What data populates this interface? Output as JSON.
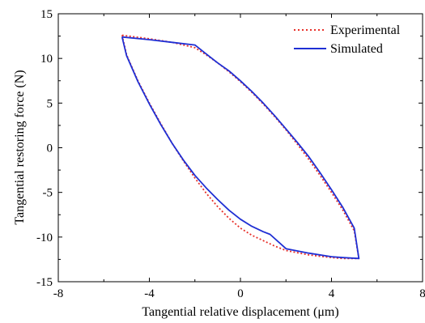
{
  "chart_data": {
    "type": "line",
    "title": "",
    "xlabel": "Tangential relative displacement (μm)",
    "ylabel": "Tangential restoring force (N)",
    "xlim": [
      -8,
      8
    ],
    "ylim": [
      -15,
      15
    ],
    "x_ticks": [
      -8,
      -4,
      0,
      4,
      8
    ],
    "y_ticks": [
      -15,
      -10,
      -5,
      0,
      5,
      10,
      15
    ],
    "grid": false,
    "legend_position": "top-right",
    "series": [
      {
        "name": "Experimental",
        "color": "#e8302a",
        "line_style": "dotted",
        "x": [
          -5.2,
          -4.0,
          -3.0,
          -2.0,
          -1.5,
          -1.0,
          -0.5,
          0.0,
          0.5,
          1.0,
          1.5,
          2.0,
          2.5,
          3.0,
          3.5,
          4.0,
          4.5,
          5.0,
          5.2,
          4.5,
          4.0,
          3.0,
          2.0,
          1.5,
          1.0,
          0.5,
          0.0,
          -0.5,
          -1.0,
          -1.5,
          -2.0,
          -2.5,
          -3.0,
          -3.5,
          -4.0,
          -4.5,
          -5.0,
          -5.2
        ],
        "y": [
          12.6,
          12.2,
          11.8,
          11.2,
          10.4,
          9.5,
          8.5,
          7.4,
          6.2,
          4.9,
          3.5,
          2.0,
          0.4,
          -1.3,
          -3.1,
          -5.0,
          -7.0,
          -9.3,
          -12.4,
          -12.4,
          -12.3,
          -12.0,
          -11.5,
          -11.0,
          -10.4,
          -9.8,
          -9.0,
          -7.9,
          -6.6,
          -5.1,
          -3.4,
          -1.5,
          0.5,
          2.7,
          5.0,
          7.5,
          10.4,
          12.6
        ]
      },
      {
        "name": "Simulated",
        "color": "#1f2fd4",
        "line_style": "solid",
        "x": [
          -5.2,
          -4.0,
          -3.0,
          -2.0,
          -1.5,
          -1.0,
          -0.5,
          0.0,
          0.5,
          1.0,
          1.5,
          2.0,
          2.5,
          3.0,
          3.5,
          4.0,
          4.5,
          5.0,
          5.2,
          4.5,
          4.0,
          3.0,
          2.0,
          1.3,
          1.0,
          0.5,
          0.0,
          -0.5,
          -1.0,
          -1.5,
          -2.0,
          -2.5,
          -3.0,
          -3.5,
          -4.0,
          -4.5,
          -5.0,
          -5.2
        ],
        "y": [
          12.4,
          12.1,
          11.8,
          11.5,
          10.5,
          9.5,
          8.6,
          7.5,
          6.3,
          5.0,
          3.6,
          2.1,
          0.6,
          -1.0,
          -2.8,
          -4.7,
          -6.7,
          -9.0,
          -12.4,
          -12.3,
          -12.2,
          -11.8,
          -11.3,
          -9.7,
          -9.4,
          -8.8,
          -8.0,
          -7.0,
          -5.8,
          -4.5,
          -3.1,
          -1.4,
          0.5,
          2.6,
          4.9,
          7.4,
          10.3,
          12.4
        ]
      }
    ]
  }
}
